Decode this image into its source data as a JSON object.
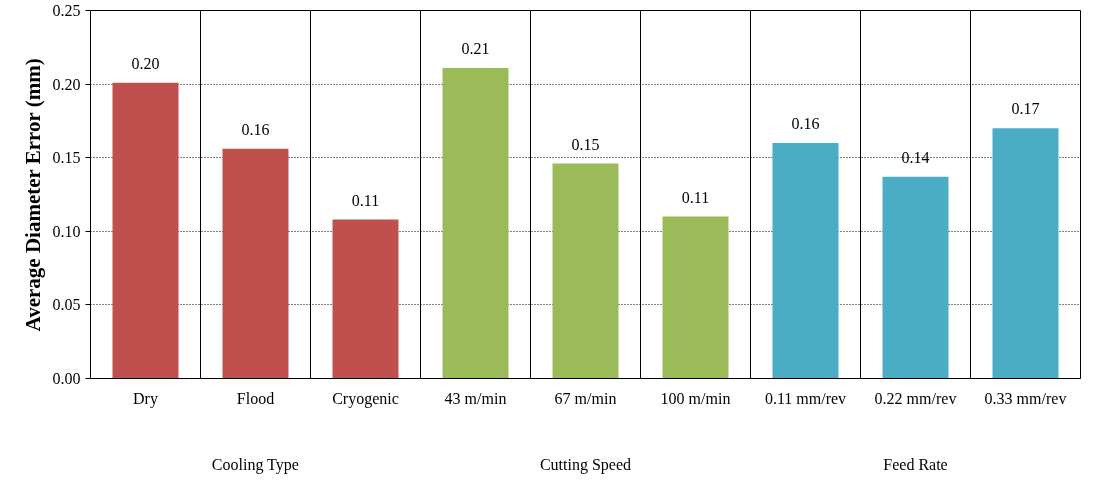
{
  "chart_data": {
    "type": "bar",
    "ylabel": "Average Diameter Error (mm)",
    "categories": [
      "Dry",
      "Flood",
      "Cryogenic",
      "43 m/min",
      "67 m/min",
      "100 m/min",
      "0.11 mm/rev",
      "0.22 mm/rev",
      "0.33 mm/rev"
    ],
    "series": [
      {
        "color": "#c0504d",
        "values": [
          0.201,
          0.156,
          0.108,
          null,
          null,
          null,
          null,
          null,
          null
        ],
        "value_labels": [
          "0.20",
          "0.16",
          "0.11",
          null,
          null,
          null,
          null,
          null,
          null
        ]
      },
      {
        "color": "#9bbb59",
        "values": [
          null,
          null,
          null,
          0.211,
          0.146,
          0.11,
          null,
          null,
          null
        ],
        "value_labels": [
          null,
          null,
          null,
          "0.21",
          "0.15",
          "0.11",
          null,
          null,
          null
        ]
      },
      {
        "color": "#4bacc6",
        "values": [
          null,
          null,
          null,
          null,
          null,
          null,
          0.16,
          0.137,
          0.17
        ],
        "value_labels": [
          null,
          null,
          null,
          null,
          null,
          null,
          "0.16",
          "0.14",
          "0.17"
        ]
      }
    ],
    "ylim": [
      0,
      0.25
    ],
    "yticks": [
      {
        "value": 0,
        "label": "0.00"
      },
      {
        "value": 0.05,
        "label": "0.05"
      },
      {
        "value": 0.1,
        "label": "0.10"
      },
      {
        "value": 0.15,
        "label": "0.15"
      },
      {
        "value": 0.2,
        "label": "0.20"
      },
      {
        "value": 0.25,
        "label": "0.25"
      }
    ],
    "grid": "y",
    "annotations": [
      "Cooling Type",
      "Cutting Speed",
      "Feed Rate"
    ]
  }
}
